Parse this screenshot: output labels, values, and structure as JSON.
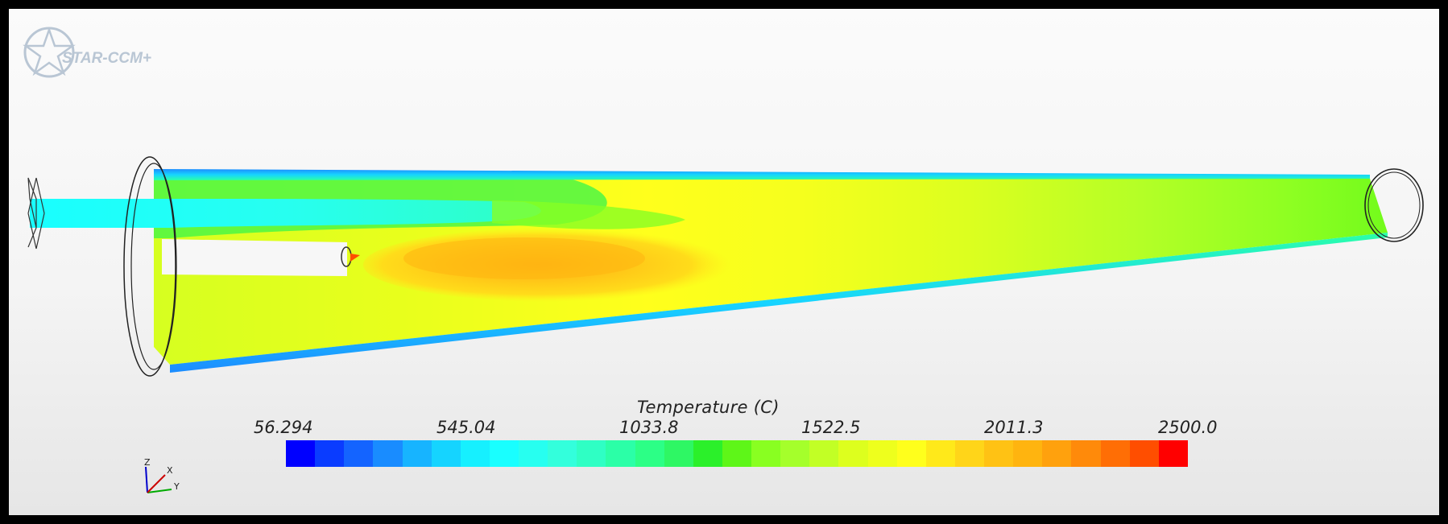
{
  "app": {
    "logo_text": "STAR-CCM+"
  },
  "colorbar": {
    "title": "Temperature (C)",
    "tick_labels": [
      "56.294",
      "545.04",
      "1033.8",
      "1522.5",
      "2011.3",
      "2500.0"
    ],
    "min": 56.294,
    "max": 2500.0,
    "colors": [
      "#0000ff",
      "#0a3cff",
      "#1464ff",
      "#198cff",
      "#17b4ff",
      "#15d4ff",
      "#16f0ff",
      "#19ffff",
      "#27fff0",
      "#33ffdc",
      "#2fffc4",
      "#2bffa7",
      "#2cff86",
      "#2ef764",
      "#2bf02a",
      "#5ef618",
      "#89ff21",
      "#a5ff2b",
      "#c2ff25",
      "#ddff1e",
      "#eeff1d",
      "#ffff1c",
      "#ffe91a",
      "#ffd519",
      "#ffc214",
      "#ffb40f",
      "#ffa10d",
      "#ff8a0a",
      "#ff6e05",
      "#ff4e00",
      "#ff0000"
    ]
  },
  "axes_triad": {
    "labels": [
      "Z",
      "X",
      "Y"
    ]
  }
}
